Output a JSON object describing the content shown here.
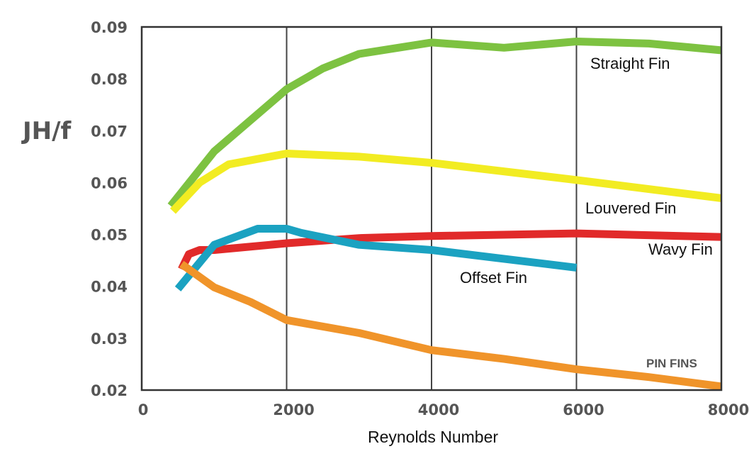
{
  "chart_data": {
    "type": "line",
    "xlabel": "Reynolds Number",
    "ylabel": "JH/f",
    "xlim": [
      0,
      8000
    ],
    "ylim": [
      0.02,
      0.09
    ],
    "x_ticks": [
      "0",
      "2000",
      "4000",
      "6000",
      "8000"
    ],
    "y_ticks": [
      "0.02",
      "0.03",
      "0.04",
      "0.05",
      "0.06",
      "0.07",
      "0.08",
      "0.09"
    ],
    "grid": "vertical",
    "series": [
      {
        "name": "Straight Fin",
        "color": "#7dc241",
        "points": [
          [
            400,
            0.0555
          ],
          [
            1000,
            0.066
          ],
          [
            2000,
            0.078
          ],
          [
            2500,
            0.082
          ],
          [
            3000,
            0.0848
          ],
          [
            4000,
            0.087
          ],
          [
            5000,
            0.086
          ],
          [
            6000,
            0.0872
          ],
          [
            7000,
            0.0868
          ],
          [
            8000,
            0.0855
          ]
        ]
      },
      {
        "name": "Louvered Fin",
        "color": "#f2ec22",
        "points": [
          [
            430,
            0.0545
          ],
          [
            800,
            0.06
          ],
          [
            1200,
            0.0635
          ],
          [
            2000,
            0.0656
          ],
          [
            3000,
            0.065
          ],
          [
            4000,
            0.0638
          ],
          [
            6000,
            0.0605
          ],
          [
            8000,
            0.057
          ]
        ]
      },
      {
        "name": "Wavy Fin",
        "color": "#e12a2a",
        "points": [
          [
            550,
            0.0433
          ],
          [
            650,
            0.0462
          ],
          [
            800,
            0.047
          ],
          [
            1000,
            0.047
          ],
          [
            2000,
            0.0483
          ],
          [
            3000,
            0.0493
          ],
          [
            4000,
            0.0497
          ],
          [
            6000,
            0.0502
          ],
          [
            8000,
            0.0495
          ]
        ]
      },
      {
        "name": "Offset Fin",
        "color": "#1ba2c1",
        "points": [
          [
            500,
            0.0395
          ],
          [
            1000,
            0.048
          ],
          [
            1600,
            0.0511
          ],
          [
            2000,
            0.0511
          ],
          [
            2200,
            0.0503
          ],
          [
            3000,
            0.048
          ],
          [
            4000,
            0.047
          ],
          [
            6000,
            0.0436
          ]
        ]
      },
      {
        "name": "PIN FINS",
        "color": "#f0942a",
        "points": [
          [
            550,
            0.0443
          ],
          [
            1000,
            0.0398
          ],
          [
            1500,
            0.037
          ],
          [
            2000,
            0.0335
          ],
          [
            3000,
            0.031
          ],
          [
            4000,
            0.0277
          ],
          [
            5000,
            0.026
          ],
          [
            6000,
            0.024
          ],
          [
            7000,
            0.0225
          ],
          [
            8000,
            0.0207
          ]
        ]
      }
    ]
  }
}
